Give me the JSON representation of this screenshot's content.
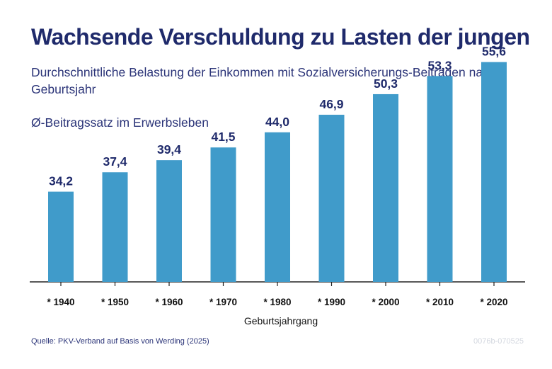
{
  "header": {
    "title": "Wachsende Verschuldung zu Lasten der jungen",
    "subtitle": "Durchschnittliche Belastung der Einkommen mit Sozialversicherungs-Beiträgen nach Geburtsjahr"
  },
  "chart_data": {
    "type": "bar",
    "categories": [
      "* 1940",
      "* 1950",
      "* 1960",
      "* 1970",
      "* 1980",
      "* 1990",
      "* 2000",
      "* 2010",
      "* 2020"
    ],
    "values": [
      34.2,
      37.4,
      39.4,
      41.5,
      44.0,
      46.9,
      50.3,
      53.3,
      55.6
    ],
    "value_labels": [
      "34,2",
      "37,4",
      "39,4",
      "41,5",
      "44,0",
      "46,9",
      "50,3",
      "53,3",
      "55,6"
    ],
    "ylabel": "Ø-Beitragssatz im Erwerbsleben",
    "xlabel": "Geburtsjahrgang",
    "grid": false,
    "colors": {
      "bar": "#409bca",
      "text": "#1f2a6b",
      "axis": "#222222"
    }
  },
  "footer": {
    "source": "Quelle: PKV-Verband auf Basis von Werding (2025)",
    "code": "0076b-070525"
  }
}
